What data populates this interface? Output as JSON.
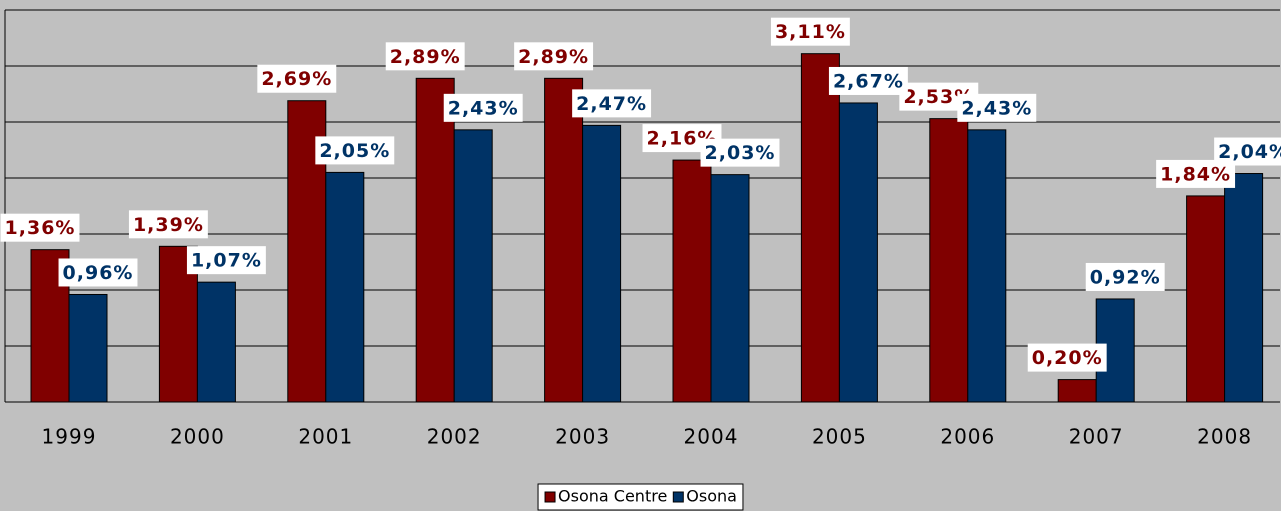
{
  "chart_data": {
    "type": "bar",
    "categories": [
      "1999",
      "2000",
      "2001",
      "2002",
      "2003",
      "2004",
      "2005",
      "2006",
      "2007",
      "2008"
    ],
    "series": [
      {
        "name": "Osona Centre",
        "color": "#800000",
        "values": [
          1.36,
          1.39,
          2.69,
          2.89,
          2.89,
          2.16,
          3.11,
          2.53,
          0.2,
          1.84
        ],
        "value_labels": [
          "1,36%",
          "1,39%",
          "2,69%",
          "2,89%",
          "2,89%",
          "2,16%",
          "3,11%",
          "2,53%",
          "0,20%",
          "1,84%"
        ]
      },
      {
        "name": "Osona",
        "color": "#003366",
        "values": [
          0.96,
          1.07,
          2.05,
          2.43,
          2.47,
          2.03,
          2.67,
          2.43,
          0.92,
          2.04
        ],
        "value_labels": [
          "0,96%",
          "1,07%",
          "2,05%",
          "2,43%",
          "2,47%",
          "2,03%",
          "2,67%",
          "2,43%",
          "0,92%",
          "2,04%"
        ]
      }
    ],
    "ylim": [
      0,
      3.5
    ],
    "yticks": [
      0,
      0.5,
      1,
      1.5,
      2,
      2.5,
      3,
      3.5
    ],
    "grid": true,
    "legend": "bottom"
  }
}
